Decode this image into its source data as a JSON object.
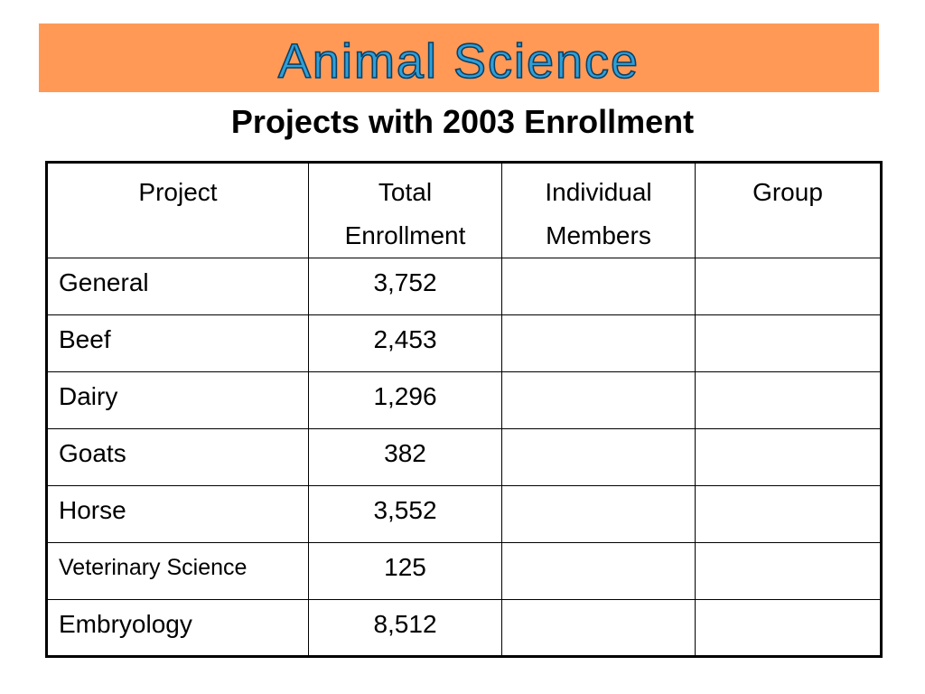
{
  "banner": {
    "title": "Animal Science",
    "background_color": "#ff9955",
    "text_fill_color": "#2f9fd6"
  },
  "subtitle": "Projects with 2003 Enrollment",
  "table": {
    "headers": {
      "project": "Project",
      "total_line1": "Total",
      "total_line2": "Enrollment",
      "individual_line1": "Individual",
      "individual_line2": "Members",
      "group": "Group"
    },
    "rows": [
      {
        "project": "General",
        "total": "3,752",
        "individual": "",
        "group": ""
      },
      {
        "project": "Beef",
        "total": "2,453",
        "individual": "",
        "group": ""
      },
      {
        "project": "Dairy",
        "total": "1,296",
        "individual": "",
        "group": ""
      },
      {
        "project": "Goats",
        "total": "382",
        "individual": "",
        "group": ""
      },
      {
        "project": "Horse",
        "total": "3,552",
        "individual": "",
        "group": ""
      },
      {
        "project": "Veterinary Science",
        "total": "125",
        "individual": "",
        "group": ""
      },
      {
        "project": "Embryology",
        "total": "8,512",
        "individual": "",
        "group": ""
      }
    ]
  }
}
